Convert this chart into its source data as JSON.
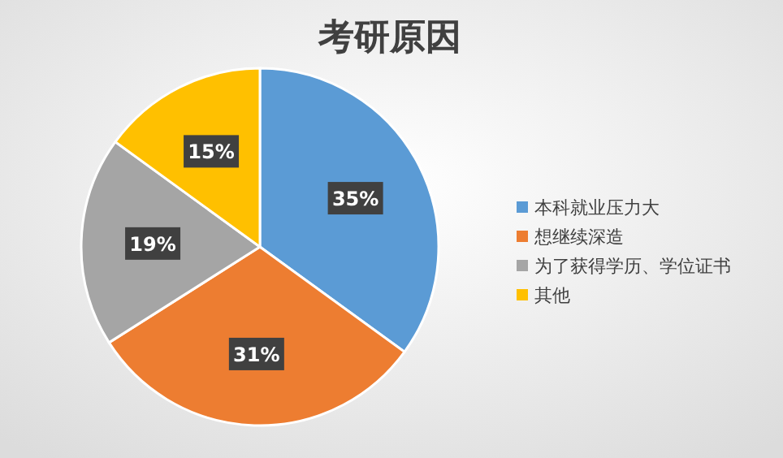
{
  "chart_data": {
    "type": "pie",
    "title": "考研原因",
    "categories": [
      "本科就业压力大",
      "想继续深造",
      "为了获得学历、学位证书",
      "其他"
    ],
    "values": [
      35,
      31,
      19,
      15
    ],
    "colors": [
      "#5b9bd5",
      "#ed7d31",
      "#a5a5a5",
      "#ffc000"
    ],
    "value_labels": [
      "35%",
      "31%",
      "19%",
      "15%"
    ],
    "legend": "right"
  }
}
